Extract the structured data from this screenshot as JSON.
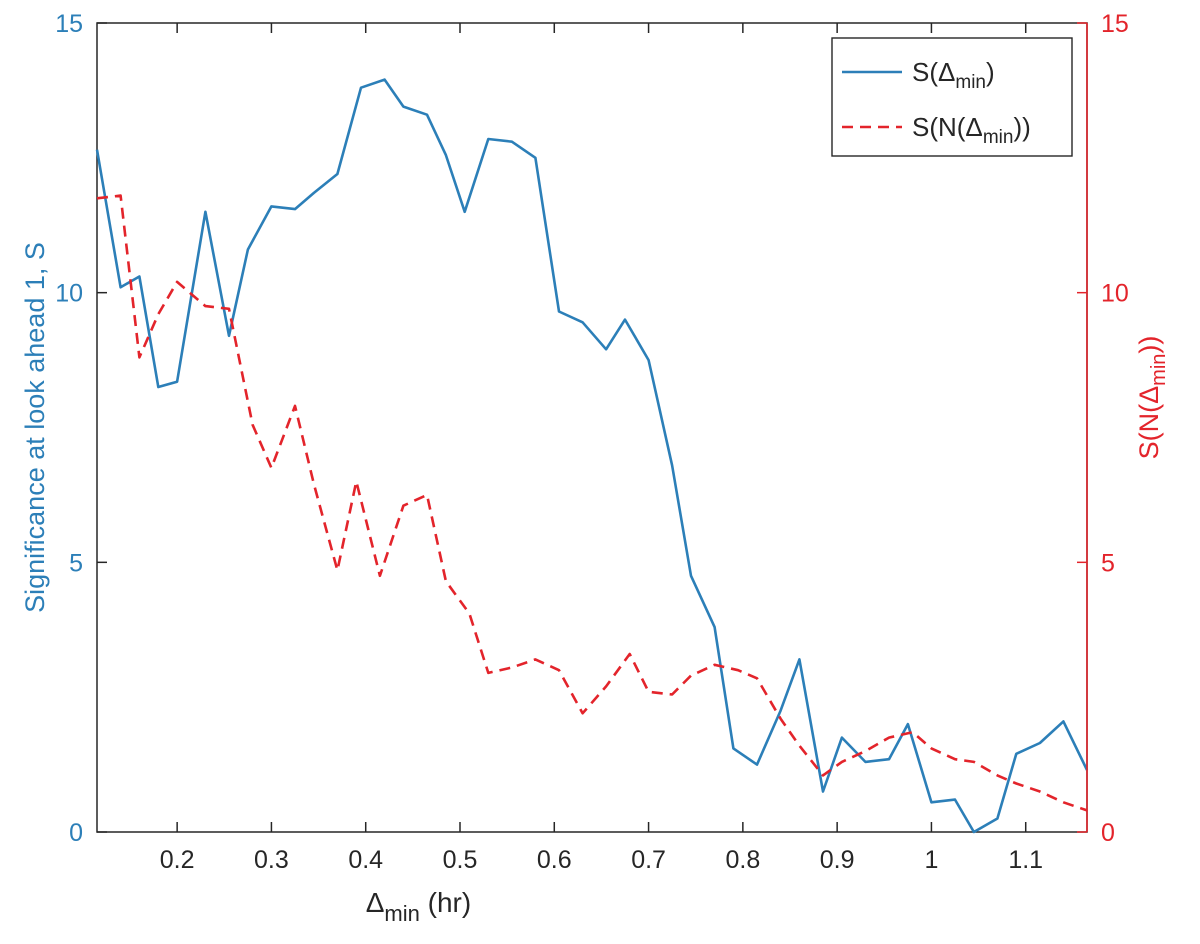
{
  "chart_data": {
    "type": "line",
    "xlabel": {
      "main": "Δ",
      "sub": "min",
      "rest": " (hr)"
    },
    "ylabel_left": "Significance at look ahead 1, S",
    "ylabel_right": {
      "pre": "S(N(Δ",
      "sub": "min",
      "post": "))"
    },
    "xlim": [
      0.115,
      1.165
    ],
    "ylim_left": [
      0,
      15
    ],
    "ylim_right": [
      0,
      15
    ],
    "x_ticks": [
      {
        "value": 0.2,
        "label": "0.2"
      },
      {
        "value": 0.3,
        "label": "0.3"
      },
      {
        "value": 0.4,
        "label": "0.4"
      },
      {
        "value": 0.5,
        "label": "0.5"
      },
      {
        "value": 0.6,
        "label": "0.6"
      },
      {
        "value": 0.7,
        "label": "0.7"
      },
      {
        "value": 0.8,
        "label": "0.8"
      },
      {
        "value": 0.9,
        "label": "0.9"
      },
      {
        "value": 1.0,
        "label": "1"
      },
      {
        "value": 1.1,
        "label": "1.1"
      }
    ],
    "y_ticks_left": [
      {
        "value": 0,
        "label": "0"
      },
      {
        "value": 5,
        "label": "5"
      },
      {
        "value": 10,
        "label": "10"
      },
      {
        "value": 15,
        "label": "15"
      }
    ],
    "y_ticks_right": [
      {
        "value": 0,
        "label": "0"
      },
      {
        "value": 5,
        "label": "5"
      },
      {
        "value": 10,
        "label": "10"
      },
      {
        "value": 15,
        "label": "15"
      }
    ],
    "grid": false,
    "legend_position": "top-right",
    "series": [
      {
        "legend": {
          "pre": "S(Δ",
          "sub": "min",
          "post": ")"
        },
        "axis": "left",
        "style": "solid",
        "color": "#2c7fb8",
        "x": [
          0.115,
          0.14,
          0.16,
          0.18,
          0.2,
          0.23,
          0.255,
          0.275,
          0.3,
          0.325,
          0.345,
          0.37,
          0.395,
          0.42,
          0.44,
          0.465,
          0.485,
          0.505,
          0.53,
          0.555,
          0.58,
          0.605,
          0.63,
          0.655,
          0.675,
          0.7,
          0.725,
          0.745,
          0.77,
          0.79,
          0.815,
          0.84,
          0.86,
          0.885,
          0.905,
          0.93,
          0.955,
          0.975,
          1.0,
          1.025,
          1.045,
          1.07,
          1.09,
          1.115,
          1.14,
          1.165
        ],
        "y": [
          12.65,
          10.1,
          10.3,
          8.25,
          8.35,
          11.5,
          9.2,
          10.8,
          11.6,
          11.55,
          11.85,
          12.2,
          13.8,
          13.95,
          13.45,
          13.3,
          12.55,
          11.5,
          12.85,
          12.8,
          12.5,
          9.65,
          9.45,
          8.95,
          9.5,
          8.75,
          6.8,
          4.75,
          3.8,
          1.55,
          1.25,
          2.25,
          3.2,
          0.75,
          1.75,
          1.3,
          1.35,
          2.0,
          0.55,
          0.6,
          0.0,
          0.25,
          1.45,
          1.65,
          2.05,
          1.15
        ]
      },
      {
        "legend": {
          "pre": "S(N(Δ",
          "sub": "min",
          "post": "))"
        },
        "axis": "right",
        "style": "dashed",
        "color": "#e3242b",
        "x": [
          0.115,
          0.14,
          0.16,
          0.18,
          0.2,
          0.23,
          0.255,
          0.28,
          0.3,
          0.325,
          0.345,
          0.37,
          0.39,
          0.415,
          0.44,
          0.465,
          0.485,
          0.51,
          0.53,
          0.555,
          0.58,
          0.605,
          0.63,
          0.655,
          0.68,
          0.7,
          0.725,
          0.745,
          0.77,
          0.795,
          0.815,
          0.84,
          0.86,
          0.885,
          0.905,
          0.93,
          0.955,
          0.98,
          1.0,
          1.025,
          1.045,
          1.07,
          1.09,
          1.115,
          1.14,
          1.165
        ],
        "y": [
          11.75,
          11.8,
          8.8,
          9.6,
          10.2,
          9.75,
          9.7,
          7.55,
          6.75,
          7.9,
          6.45,
          4.85,
          6.5,
          4.75,
          6.05,
          6.25,
          4.65,
          4.05,
          2.95,
          3.05,
          3.2,
          3.0,
          2.2,
          2.7,
          3.3,
          2.6,
          2.55,
          2.9,
          3.1,
          3.0,
          2.85,
          2.1,
          1.6,
          1.05,
          1.3,
          1.5,
          1.75,
          1.85,
          1.55,
          1.35,
          1.3,
          1.05,
          0.9,
          0.75,
          0.55,
          0.4
        ]
      }
    ]
  }
}
